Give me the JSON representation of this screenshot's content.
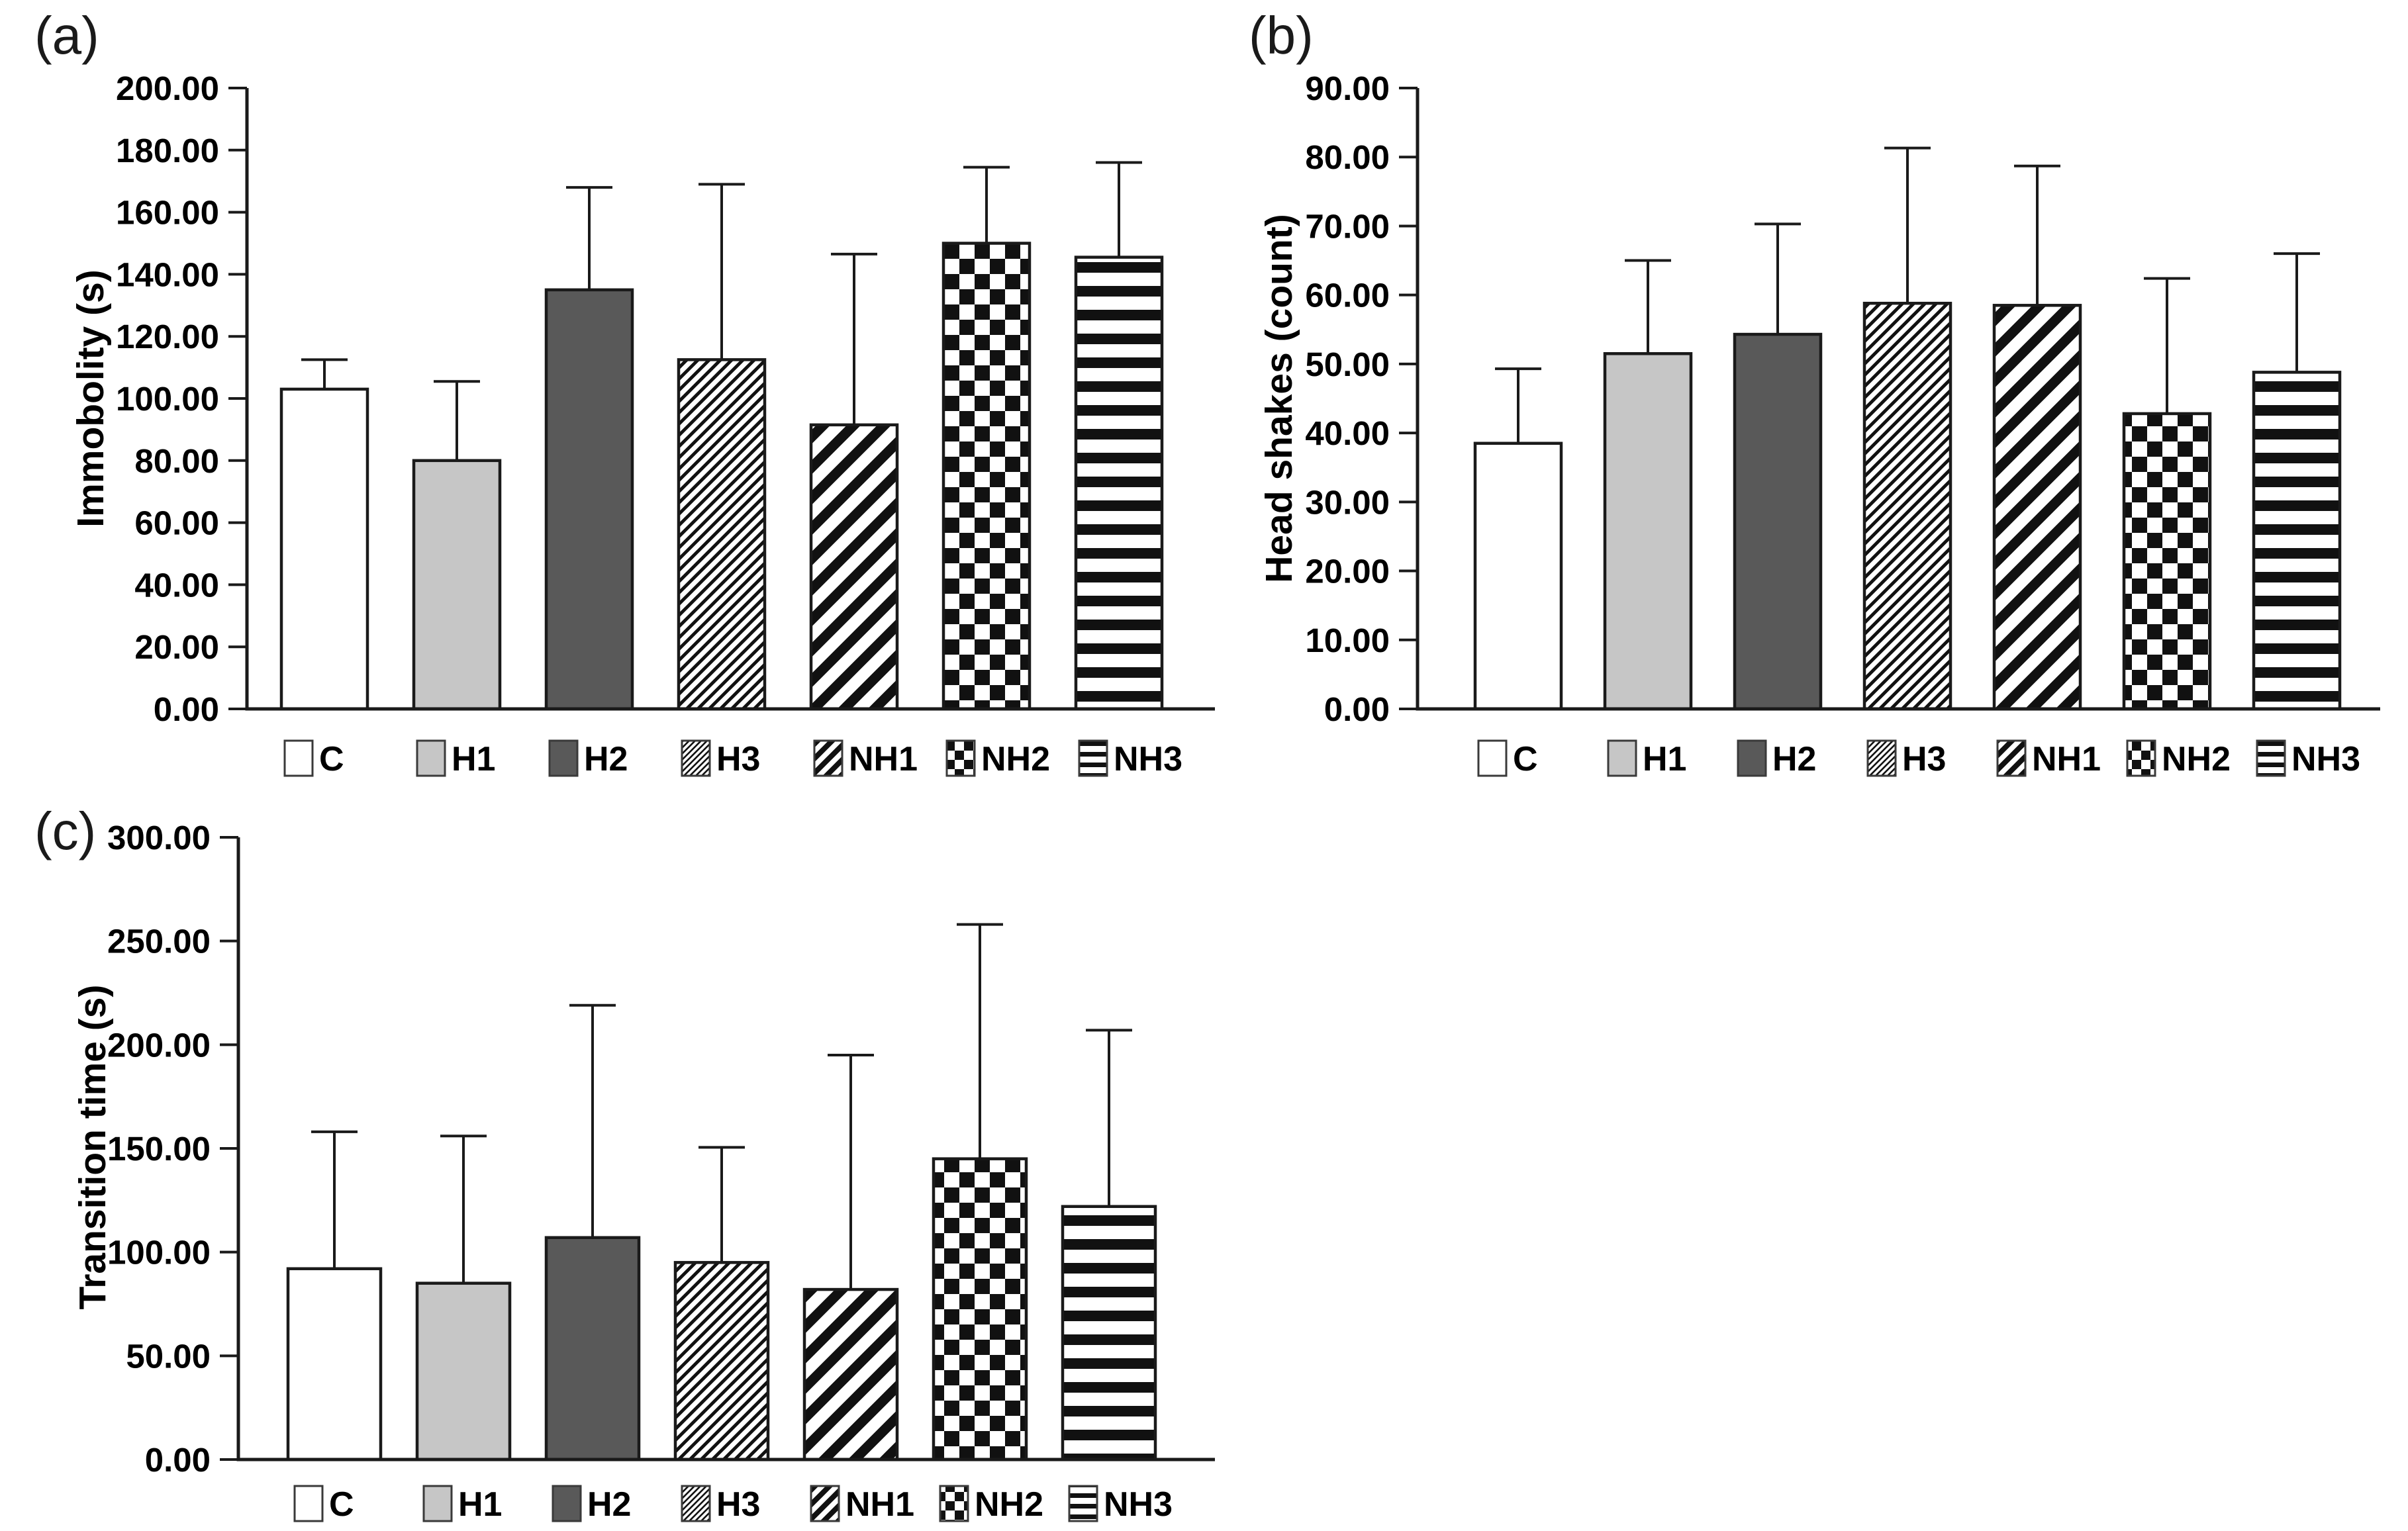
{
  "figure": {
    "background": "#ffffff",
    "axis_color": "#1a1a1a",
    "text_color": "#000000",
    "panel_labels": [
      "(a)",
      "(b)",
      "(c)"
    ]
  },
  "style": {
    "series": {
      "C": {
        "fill": "#ffffff",
        "pattern": null,
        "legend_glyph": "white-square"
      },
      "H1": {
        "fill": "#c6c6c6",
        "pattern": null,
        "legend_glyph": "light-gray-square"
      },
      "H2": {
        "fill": "#595959",
        "pattern": null,
        "legend_glyph": "dark-gray-square"
      },
      "H3": {
        "fill": "#ffffff",
        "pattern": "diagThin",
        "legend_glyph": "thin-diagonal-hatch-square"
      },
      "NH1": {
        "fill": "#ffffff",
        "pattern": "diagThick",
        "legend_glyph": "thick-diagonal-hatch-square"
      },
      "NH2": {
        "fill": "#ffffff",
        "pattern": "checker",
        "legend_glyph": "checkerboard-square"
      },
      "NH3": {
        "fill": "#ffffff",
        "pattern": "hstripe",
        "legend_glyph": "horizontal-stripes-square"
      }
    }
  },
  "chart_data": [
    {
      "id": "a",
      "type": "bar",
      "title": "(a)",
      "xlabel": "",
      "ylabel": "Immobolity (s)",
      "ylim": [
        0,
        200
      ],
      "ytick_step": 20,
      "ytick_format_decimals": 2,
      "grid": false,
      "legend_position": "bottom",
      "error_bars": "upper",
      "categories": [
        "C",
        "H1",
        "H2",
        "H3",
        "NH1",
        "NH2",
        "NH3"
      ],
      "values": [
        103,
        80,
        135,
        112.5,
        91.5,
        150,
        145.5
      ],
      "error_top": [
        112.5,
        105.5,
        168,
        169,
        146.5,
        174.5,
        176
      ]
    },
    {
      "id": "b",
      "type": "bar",
      "title": "(b)",
      "xlabel": "",
      "ylabel": "Head shakes (count)",
      "ylim": [
        0,
        90
      ],
      "ytick_step": 10,
      "ytick_format_decimals": 2,
      "grid": false,
      "legend_position": "bottom",
      "error_bars": "upper",
      "categories": [
        "C",
        "H1",
        "H2",
        "H3",
        "NH1",
        "NH2",
        "NH3"
      ],
      "values": [
        38.5,
        51.5,
        54.3,
        58.8,
        58.5,
        42.8,
        48.8
      ],
      "error_top": [
        49.3,
        65,
        70.3,
        81.3,
        78.7,
        62.4,
        66
      ]
    },
    {
      "id": "c",
      "type": "bar",
      "title": "(c)",
      "xlabel": "",
      "ylabel": "Transition time (s)",
      "ylim": [
        0,
        300
      ],
      "ytick_step": 50,
      "ytick_format_decimals": 2,
      "grid": false,
      "legend_position": "bottom",
      "error_bars": "upper",
      "categories": [
        "C",
        "H1",
        "H2",
        "H3",
        "NH1",
        "NH2",
        "NH3"
      ],
      "values": [
        92,
        85,
        107,
        95,
        82,
        145,
        122
      ],
      "error_top": [
        158,
        156,
        219,
        150.5,
        195,
        258,
        207
      ]
    }
  ]
}
